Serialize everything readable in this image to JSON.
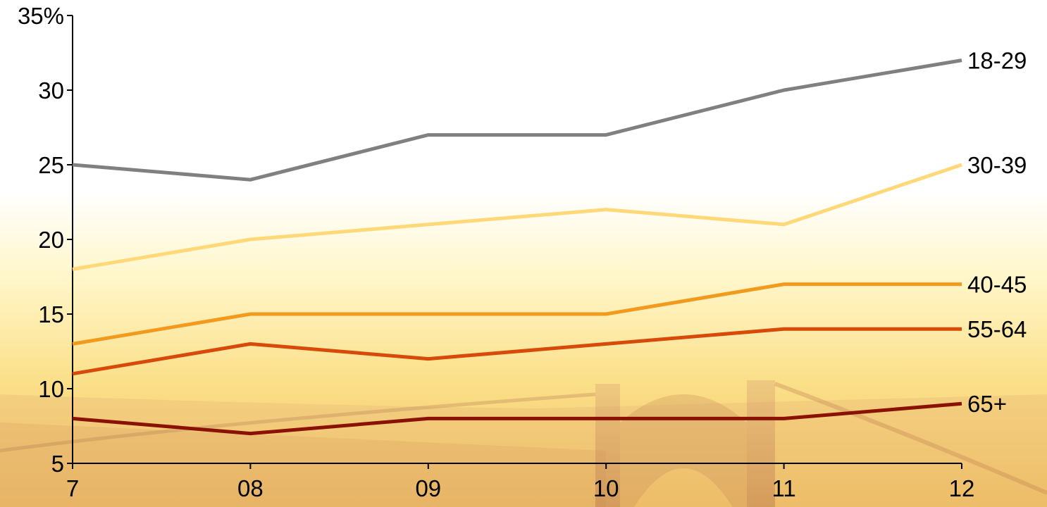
{
  "chart_data": {
    "type": "line",
    "x": [
      "7",
      "08",
      "09",
      "10",
      "11",
      "12"
    ],
    "ylim": [
      5,
      35
    ],
    "yticks": [
      "5",
      "10",
      "15",
      "20",
      "25",
      "30",
      "35%"
    ],
    "ytick_values": [
      5,
      10,
      15,
      20,
      25,
      30,
      35
    ],
    "grid": false,
    "legend": "inline-right",
    "series": [
      {
        "name": "18-29",
        "values": [
          25,
          24,
          27,
          27,
          30,
          32
        ],
        "color": "#808080"
      },
      {
        "name": "30-39",
        "values": [
          18,
          20,
          21,
          22,
          21,
          25
        ],
        "color": "#FFD878"
      },
      {
        "name": "40-45",
        "values": [
          13,
          15,
          15,
          15,
          17,
          17
        ],
        "color": "#F29A1E"
      },
      {
        "name": "55-64",
        "values": [
          11,
          13,
          12,
          13,
          14,
          14
        ],
        "color": "#D84A0A"
      },
      {
        "name": "65+",
        "values": [
          8,
          7,
          8,
          8,
          8,
          9
        ],
        "color": "#8A1204"
      }
    ]
  }
}
